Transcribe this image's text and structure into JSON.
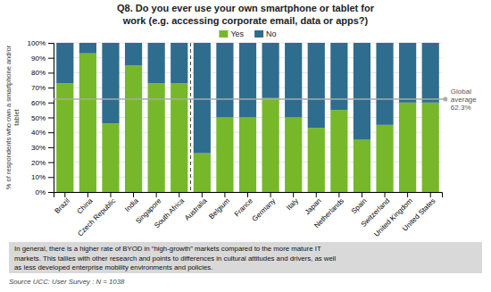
{
  "chart_data": {
    "type": "bar",
    "stacked": true,
    "title": "Q8. Do you ever use your own smartphone or tablet for\nwork (e.g. accessing corporate email, data or apps?)",
    "ylabel": "% of respondents who own a smartphone and/or\ntablet",
    "categories": [
      "Brazil",
      "China",
      "Czech Republic",
      "India",
      "Singapore",
      "South Africa",
      "Australia",
      "Belgium",
      "France",
      "Germany",
      "Italy",
      "Japan",
      "Netherlands",
      "Spain",
      "Switzerland",
      "United Kingdom",
      "United States"
    ],
    "series": [
      {
        "name": "Yes",
        "color": "#76b82a",
        "values": [
          73,
          93,
          46,
          85,
          73,
          73,
          26,
          50,
          50,
          63,
          50,
          43,
          55,
          35,
          45,
          60,
          60
        ]
      },
      {
        "name": "No",
        "color": "#2e6d8e",
        "values": [
          27,
          7,
          54,
          15,
          27,
          27,
          74,
          50,
          50,
          37,
          50,
          57,
          45,
          65,
          55,
          40,
          40
        ]
      }
    ],
    "reference_line": {
      "value": 62.3,
      "label": "Global\naverage\n62.3%"
    },
    "divider_after": 5,
    "annotation": "In general, there is a higher rate of BYOD in “high-growth” markets compared to the more mature IT\nmarkets. This tallies with other research and points to differences in cultural attitudes and drivers, as well\nas less developed enterprise mobility environments and policies.",
    "source": "Source UCC: User Survey : N = 1038",
    "ylim": [
      0,
      100
    ],
    "yticks": [
      {
        "value": 0,
        "label": "0%"
      },
      {
        "value": 10,
        "label": "10%"
      },
      {
        "value": 20,
        "label": "20%"
      },
      {
        "value": 30,
        "label": "30%"
      },
      {
        "value": 40,
        "label": "40%"
      },
      {
        "value": 50,
        "label": "50%"
      },
      {
        "value": 60,
        "label": "60%"
      },
      {
        "value": 70,
        "label": "70%"
      },
      {
        "value": 80,
        "label": "80%"
      },
      {
        "value": 90,
        "label": "90%"
      },
      {
        "value": 100,
        "label": "100%"
      }
    ],
    "grid": true,
    "legend": "top"
  }
}
